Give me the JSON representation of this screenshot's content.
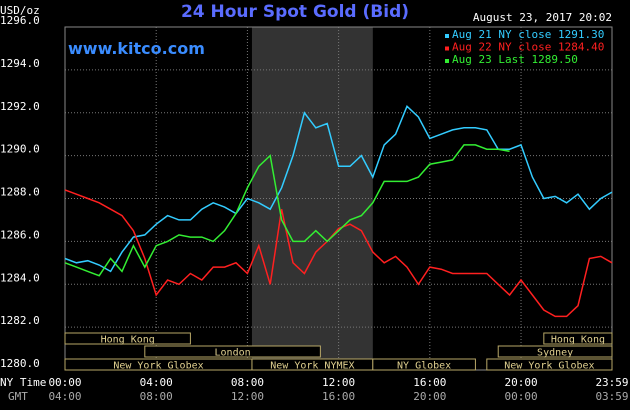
{
  "chart_data": {
    "type": "line",
    "title": "24 Hour Spot Gold (Bid)",
    "subtitle": "www.kitco.com",
    "timestamp": "August 23, 2017 20:02",
    "y_unit_label": "USD/oz",
    "x_axis_label": "NY Time",
    "x2_axis_label": "GMT",
    "x": [
      0,
      0.5,
      1,
      1.5,
      2,
      2.5,
      3,
      3.5,
      4,
      4.5,
      5,
      5.5,
      6,
      6.5,
      7,
      7.5,
      8,
      8.5,
      9,
      9.5,
      10,
      10.5,
      11,
      11.5,
      12,
      12.5,
      13,
      13.5,
      14,
      14.5,
      15,
      15.5,
      16,
      16.5,
      17,
      17.5,
      18,
      18.5,
      19,
      19.5,
      20,
      20.5,
      21,
      21.5,
      22,
      22.5,
      23,
      23.5,
      23.99
    ],
    "xlim": [
      0,
      23.99
    ],
    "xticks": [
      {
        "value": 0,
        "label": "00:00"
      },
      {
        "value": 4,
        "label": "04:00"
      },
      {
        "value": 8,
        "label": "08:00"
      },
      {
        "value": 12,
        "label": "12:00"
      },
      {
        "value": 16,
        "label": "16:00"
      },
      {
        "value": 20,
        "label": "20:00"
      },
      {
        "value": 23.99,
        "label": "23:59"
      }
    ],
    "x2_tick_labels": [
      "04:00",
      "08:00",
      "12:00",
      "16:00",
      "20:00",
      "00:00",
      "03:59"
    ],
    "ylim": [
      1280,
      1296
    ],
    "yticks": [
      {
        "value": 1280,
        "label": "1280.0"
      },
      {
        "value": 1282,
        "label": "1282.0"
      },
      {
        "value": 1284,
        "label": "1284.0"
      },
      {
        "value": 1286,
        "label": "1286.0"
      },
      {
        "value": 1288,
        "label": "1288.0"
      },
      {
        "value": 1290,
        "label": "1290.0"
      },
      {
        "value": 1292,
        "label": "1292.0"
      },
      {
        "value": 1294,
        "label": "1294.0"
      },
      {
        "value": 1296,
        "label": "1296.0"
      }
    ],
    "grid": true,
    "legend": "top-right",
    "series": [
      {
        "name": "Aug 21 NY close 1291.30",
        "color": "#33ccff",
        "values": [
          1285.2,
          1285.0,
          1285.1,
          1284.9,
          1284.6,
          1285.5,
          1286.2,
          1286.3,
          1286.8,
          1287.2,
          1287.0,
          1287.0,
          1287.5,
          1287.8,
          1287.6,
          1287.3,
          1288.0,
          1287.8,
          1287.5,
          1288.5,
          1290.0,
          1292.0,
          1291.3,
          1291.5,
          1289.5,
          1289.5,
          1290.0,
          1289.0,
          1290.5,
          1291.0,
          1292.3,
          1291.8,
          1290.8,
          1291.0,
          1291.2,
          1291.3,
          1291.3,
          1291.2,
          1290.3,
          1290.3,
          1290.5,
          1289.0,
          1288.0,
          1288.1,
          1287.8,
          1288.2,
          1287.5,
          1288.0,
          1288.3
        ]
      },
      {
        "name": "Aug 22 NY close 1284.40",
        "color": "#ff2020",
        "values": [
          1288.4,
          1288.2,
          1288.0,
          1287.8,
          1287.5,
          1287.2,
          1286.5,
          1285.2,
          1283.5,
          1284.2,
          1284.0,
          1284.5,
          1284.2,
          1284.8,
          1284.8,
          1285.0,
          1284.5,
          1285.8,
          1284.0,
          1287.5,
          1285.0,
          1284.5,
          1285.5,
          1286.0,
          1286.6,
          1286.8,
          1286.5,
          1285.5,
          1285.0,
          1285.3,
          1284.8,
          1284.0,
          1284.8,
          1284.7,
          1284.5,
          1284.5,
          1284.5,
          1284.5,
          1284.0,
          1283.5,
          1284.2,
          1283.5,
          1282.8,
          1282.5,
          1282.5,
          1283.0,
          1285.2,
          1285.3,
          1285.0
        ]
      },
      {
        "name": "Aug 23 Last 1289.50",
        "color": "#33ee33",
        "values": [
          1285.0,
          1284.8,
          1284.6,
          1284.4,
          1285.2,
          1284.6,
          1285.8,
          1284.8,
          1285.8,
          1286.0,
          1286.3,
          1286.2,
          1286.2,
          1286.0,
          1286.5,
          1287.3,
          1288.5,
          1289.5,
          1290.0,
          1287.0,
          1286.0,
          1286.0,
          1286.5,
          1286.0,
          1286.5,
          1287.0,
          1287.2,
          1287.8,
          1288.8,
          1288.8,
          1288.8,
          1289.0,
          1289.6,
          1289.7,
          1289.8,
          1290.5,
          1290.5,
          1290.3,
          1290.3,
          1290.2,
          null,
          null,
          null,
          null,
          null,
          null,
          null,
          null,
          null
        ]
      }
    ],
    "sessions": [
      {
        "label": "Hong Kong",
        "start": 0,
        "end": 5.5,
        "row": 0
      },
      {
        "label": "London",
        "start": 3.5,
        "end": 11.2,
        "row": 1
      },
      {
        "label": "New York Globex",
        "start": 0,
        "end": 8.2,
        "row": 2
      },
      {
        "label": "New York NYMEX",
        "start": 8.2,
        "end": 13.5,
        "row": 2,
        "shaded": true
      },
      {
        "label": "NY Globex",
        "start": 13.5,
        "end": 18,
        "row": 2
      },
      {
        "label": "Sydney",
        "start": 19,
        "end": 23.99,
        "row": 1
      },
      {
        "label": "Hong Kong",
        "start": 21,
        "end": 23.99,
        "row": 0
      },
      {
        "label": "New York Globex",
        "start": 18.5,
        "end": 23.99,
        "row": 2
      }
    ]
  }
}
